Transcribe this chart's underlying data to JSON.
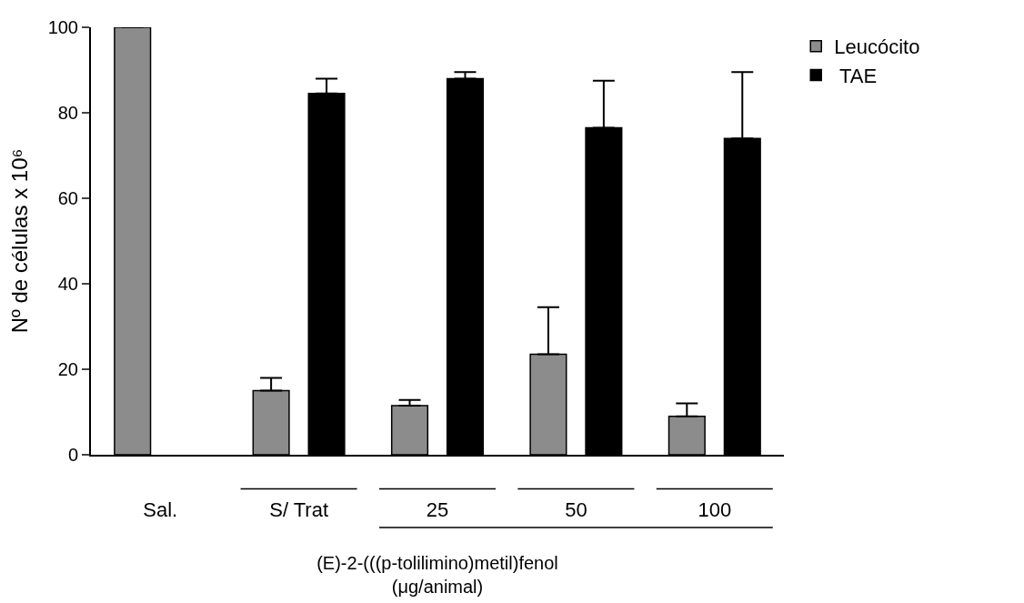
{
  "chart_data": {
    "type": "bar",
    "ylabel": "Nº de células x 10⁶",
    "xlabel": "(E)-2-(((p-tolilimino)metil)fenol\n(μg/animal)",
    "categories": [
      "Sal.",
      "S/ Trat",
      "25",
      "50",
      "100"
    ],
    "series": [
      {
        "name": "Leucócito",
        "color": "#8c8c8c",
        "values": [
          100,
          15,
          11.5,
          23.5,
          9
        ],
        "errors": [
          null,
          [
            15,
            18
          ],
          [
            11.5,
            12.8
          ],
          [
            23.5,
            34.5
          ],
          [
            9,
            12
          ]
        ]
      },
      {
        "name": " TAE",
        "color": "#000000",
        "values": [
          null,
          84.5,
          88,
          76.5,
          74
        ],
        "errors": [
          null,
          [
            84.5,
            88
          ],
          [
            88,
            89.5
          ],
          [
            76.5,
            87.5
          ],
          [
            74,
            89.5
          ]
        ]
      }
    ],
    "ylim": [
      0,
      100
    ],
    "yticks": [
      0,
      20,
      40,
      60,
      80,
      100
    ],
    "grid": false,
    "legend": "top right"
  }
}
